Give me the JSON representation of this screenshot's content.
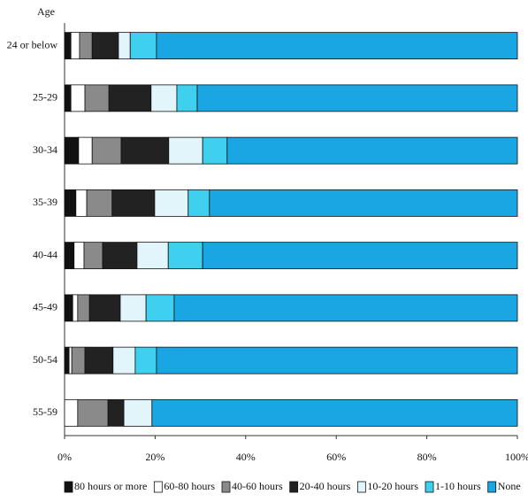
{
  "chart_data": {
    "type": "stacked-bar-horizontal",
    "y_axis_title": "Age",
    "categories": [
      "24 or below",
      "25-29",
      "30-34",
      "35-39",
      "40-44",
      "45-49",
      "50-54",
      "55-59"
    ],
    "series": [
      {
        "name": "80 hours or more",
        "color": "#111111",
        "values": [
          1.4,
          1.4,
          3.1,
          2.5,
          2.1,
          1.8,
          1.0,
          0
        ]
      },
      {
        "name": "60-80 hours",
        "color": "#ffffff",
        "values": [
          1.9,
          3.1,
          3.0,
          2.4,
          2.2,
          1.1,
          0.6,
          2.9
        ]
      },
      {
        "name": "40-60 hours",
        "color": "#8a8a8a",
        "values": [
          2.8,
          5.3,
          6.4,
          5.6,
          4.1,
          2.6,
          2.9,
          6.7
        ]
      },
      {
        "name": "20-40 hours",
        "color": "#222222",
        "values": [
          5.8,
          9.3,
          10.5,
          9.4,
          7.6,
          6.8,
          6.2,
          3.5
        ]
      },
      {
        "name": "10-20 hours",
        "color": "#e2f5fb",
        "values": [
          2.6,
          5.7,
          7.5,
          7.4,
          6.9,
          5.7,
          4.9,
          6.2
        ]
      },
      {
        "name": "1-10 hours",
        "color": "#3fd0f0",
        "values": [
          5.8,
          4.5,
          5.4,
          4.7,
          7.6,
          6.2,
          4.7,
          0
        ]
      },
      {
        "name": "None",
        "color": "#1aa6e2",
        "values": [
          79.7,
          70.7,
          64.1,
          68.0,
          69.5,
          75.8,
          79.7,
          80.7
        ]
      }
    ],
    "xlim": [
      0,
      100
    ],
    "xticks": [
      {
        "value": 0,
        "label": "0%"
      },
      {
        "value": 20,
        "label": "20%"
      },
      {
        "value": 40,
        "label": "40%"
      },
      {
        "value": 60,
        "label": "60%"
      },
      {
        "value": 80,
        "label": "80%"
      },
      {
        "value": 100,
        "label": "100%"
      }
    ]
  }
}
